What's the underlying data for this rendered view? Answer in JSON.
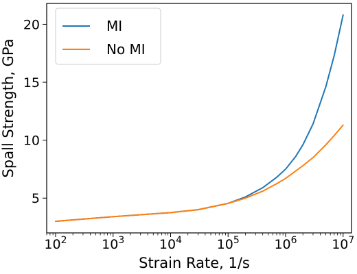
{
  "chart_data": {
    "type": "line",
    "xlabel": "Strain Rate, 1/s",
    "ylabel": "Spall Strength, GPa",
    "xscale": "log",
    "xlim": [
      70,
      14000000
    ],
    "ylim": [
      2.0,
      21.8
    ],
    "x_ticks": [
      {
        "value": 100,
        "base": "10",
        "exp": "2"
      },
      {
        "value": 1000,
        "base": "10",
        "exp": "3"
      },
      {
        "value": 10000,
        "base": "10",
        "exp": "4"
      },
      {
        "value": 100000,
        "base": "10",
        "exp": "5"
      },
      {
        "value": 1000000,
        "base": "10",
        "exp": "6"
      },
      {
        "value": 10000000,
        "base": "10",
        "exp": "7"
      }
    ],
    "y_ticks": [
      {
        "value": 5,
        "label": "5"
      },
      {
        "value": 10,
        "label": "10"
      },
      {
        "value": 15,
        "label": "15"
      },
      {
        "value": 20,
        "label": "20"
      }
    ],
    "grid": false,
    "legend_position": "top-left",
    "series": [
      {
        "name": "MI",
        "color": "#1f77b4",
        "x": [
          100,
          1000,
          10000,
          30000,
          100000,
          200000,
          400000,
          700000,
          1000000,
          1500000,
          2000000,
          3000000,
          5000000,
          7000000,
          10000000
        ],
        "y": [
          3.0,
          3.4,
          3.75,
          4.0,
          4.55,
          5.1,
          5.9,
          6.8,
          7.5,
          8.6,
          9.6,
          11.4,
          14.6,
          17.3,
          20.8
        ]
      },
      {
        "name": "No MI",
        "color": "#ff7f0e",
        "x": [
          100,
          1000,
          10000,
          30000,
          100000,
          200000,
          400000,
          700000,
          1000000,
          2000000,
          3000000,
          5000000,
          7000000,
          10000000
        ],
        "y": [
          3.0,
          3.4,
          3.75,
          4.0,
          4.55,
          5.0,
          5.6,
          6.25,
          6.7,
          7.8,
          8.5,
          9.6,
          10.4,
          11.3
        ]
      }
    ]
  }
}
